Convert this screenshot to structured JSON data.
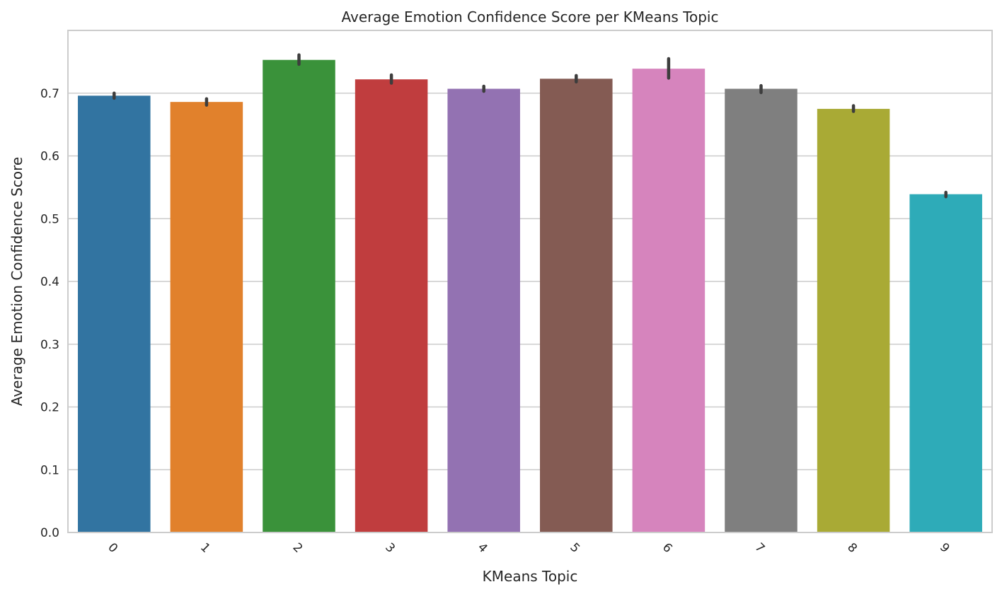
{
  "chart_data": {
    "type": "bar",
    "title": "Average Emotion Confidence Score per KMeans Topic",
    "xlabel": "KMeans Topic",
    "ylabel": "Average Emotion Confidence Score",
    "categories": [
      "0",
      "1",
      "2",
      "3",
      "4",
      "5",
      "6",
      "7",
      "8",
      "9"
    ],
    "values": [
      0.696,
      0.686,
      0.753,
      0.722,
      0.707,
      0.723,
      0.739,
      0.707,
      0.675,
      0.539
    ],
    "error_bars": [
      [
        0.692,
        0.7
      ],
      [
        0.681,
        0.691
      ],
      [
        0.746,
        0.761
      ],
      [
        0.716,
        0.729
      ],
      [
        0.703,
        0.711
      ],
      [
        0.718,
        0.728
      ],
      [
        0.724,
        0.755
      ],
      [
        0.701,
        0.712
      ],
      [
        0.671,
        0.68
      ],
      [
        0.535,
        0.542
      ]
    ],
    "colors": [
      "#3274a1",
      "#e1812c",
      "#3a923a",
      "#c03d3e",
      "#9372b2",
      "#845b53",
      "#d684bd",
      "#7f7f7f",
      "#a9aa35",
      "#2eabb8"
    ],
    "ylim": [
      0,
      0.8
    ],
    "yticks": [
      "0.0",
      "0.1",
      "0.2",
      "0.3",
      "0.4",
      "0.5",
      "0.6",
      "0.7"
    ],
    "ytick_values": [
      0,
      0.1,
      0.2,
      0.3,
      0.4,
      0.5,
      0.6,
      0.7
    ],
    "grid": "horizontal",
    "xtick_rotation_deg": 45
  }
}
